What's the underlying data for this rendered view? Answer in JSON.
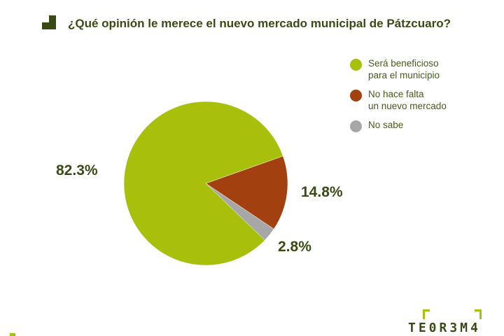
{
  "title": "¿Qué opinión le merece el nuevo mercado municipal de Pátzcuaro?",
  "brand": "TE0R3M4",
  "colors": {
    "accent": "#a8bf0c",
    "dark_text": "#3a4a14"
  },
  "chart_data": {
    "type": "pie",
    "title": "¿Qué opinión le merece el nuevo mercado municipal de Pátzcuaro?",
    "slices": [
      {
        "label": "Será beneficioso\npara el municipio",
        "value": 82.3,
        "display": "82.3%",
        "color": "#a8bf0c"
      },
      {
        "label": "No hace falta\nun nuevo mercado",
        "value": 14.8,
        "display": "14.8%",
        "color": "#a3400f"
      },
      {
        "label": "No sabe",
        "value": 2.8,
        "display": "2.8%",
        "color": "#a7a7a7"
      }
    ],
    "legend_position": "right"
  }
}
